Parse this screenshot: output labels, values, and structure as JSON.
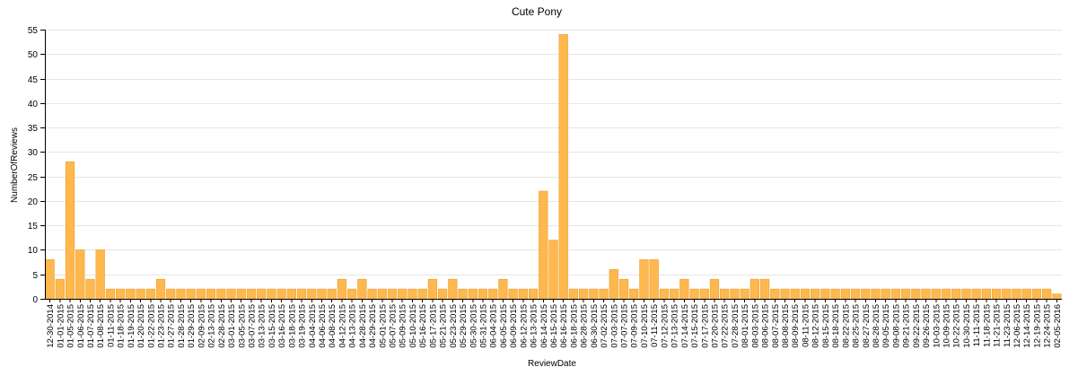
{
  "chart_data": {
    "type": "bar",
    "title": "Cute Pony",
    "xlabel": "ReviewDate",
    "ylabel": "NumberOfReviews",
    "ylim": [
      0,
      55
    ],
    "yticks": [
      0,
      5,
      10,
      15,
      20,
      25,
      30,
      35,
      40,
      45,
      50,
      55
    ],
    "grid": true,
    "bar_color": "#ffb84d",
    "bar_stroke": "#e8a030",
    "categories": [
      "12-30-2014",
      "01-01-2015",
      "01-05-2015",
      "01-06-2015",
      "01-07-2015",
      "01-08-2015",
      "01-11-2015",
      "01-18-2015",
      "01-19-2015",
      "01-20-2015",
      "01-22-2015",
      "01-23-2015",
      "01-27-2015",
      "01-28-2015",
      "01-29-2015",
      "02-09-2015",
      "02-13-2015",
      "02-28-2015",
      "03-01-2015",
      "03-05-2015",
      "03-07-2015",
      "03-13-2015",
      "03-15-2015",
      "03-16-2015",
      "03-18-2015",
      "03-19-2015",
      "04-04-2015",
      "04-06-2015",
      "04-08-2015",
      "04-12-2015",
      "04-13-2015",
      "04-28-2015",
      "04-29-2015",
      "05-01-2015",
      "05-07-2015",
      "05-09-2015",
      "05-10-2015",
      "05-16-2015",
      "05-17-2015",
      "05-21-2015",
      "05-23-2015",
      "05-29-2015",
      "05-30-2015",
      "05-31-2015",
      "06-04-2015",
      "06-05-2015",
      "06-09-2015",
      "06-12-2015",
      "06-13-2015",
      "06-14-2015",
      "06-15-2015",
      "06-16-2015",
      "06-18-2015",
      "06-28-2015",
      "06-30-2015",
      "07-02-2015",
      "07-03-2015",
      "07-07-2015",
      "07-09-2015",
      "07-10-2015",
      "07-11-2015",
      "07-12-2015",
      "07-13-2015",
      "07-14-2015",
      "07-15-2015",
      "07-17-2015",
      "07-20-2015",
      "07-22-2015",
      "07-28-2015",
      "08-01-2015",
      "08-03-2015",
      "08-06-2015",
      "08-07-2015",
      "08-08-2015",
      "08-09-2015",
      "08-11-2015",
      "08-12-2015",
      "08-15-2015",
      "08-18-2015",
      "08-22-2015",
      "08-25-2015",
      "08-27-2015",
      "08-28-2015",
      "09-05-2015",
      "09-08-2015",
      "09-21-2015",
      "09-22-2015",
      "09-26-2015",
      "10-03-2015",
      "10-09-2015",
      "10-22-2015",
      "10-30-2015",
      "11-11-2015",
      "11-18-2015",
      "11-21-2015",
      "11-23-2015",
      "12-06-2015",
      "12-14-2015",
      "12-19-2015",
      "12-24-2015",
      "02-05-2016"
    ],
    "values": [
      8,
      4,
      28,
      10,
      4,
      10,
      2,
      2,
      2,
      2,
      2,
      4,
      2,
      2,
      2,
      2,
      2,
      2,
      2,
      2,
      2,
      2,
      2,
      2,
      2,
      2,
      2,
      2,
      2,
      4,
      2,
      4,
      2,
      2,
      2,
      2,
      2,
      2,
      4,
      2,
      4,
      2,
      2,
      2,
      2,
      4,
      2,
      2,
      2,
      22,
      12,
      54,
      2,
      2,
      2,
      2,
      6,
      4,
      2,
      8,
      8,
      2,
      2,
      4,
      2,
      2,
      4,
      2,
      2,
      2,
      4,
      4,
      2,
      2,
      2,
      2,
      2,
      2,
      2,
      2,
      2,
      2,
      2,
      2,
      2,
      2,
      2,
      2,
      2,
      2,
      2,
      2,
      2,
      2,
      2,
      2,
      2,
      2,
      2,
      2,
      1
    ]
  }
}
